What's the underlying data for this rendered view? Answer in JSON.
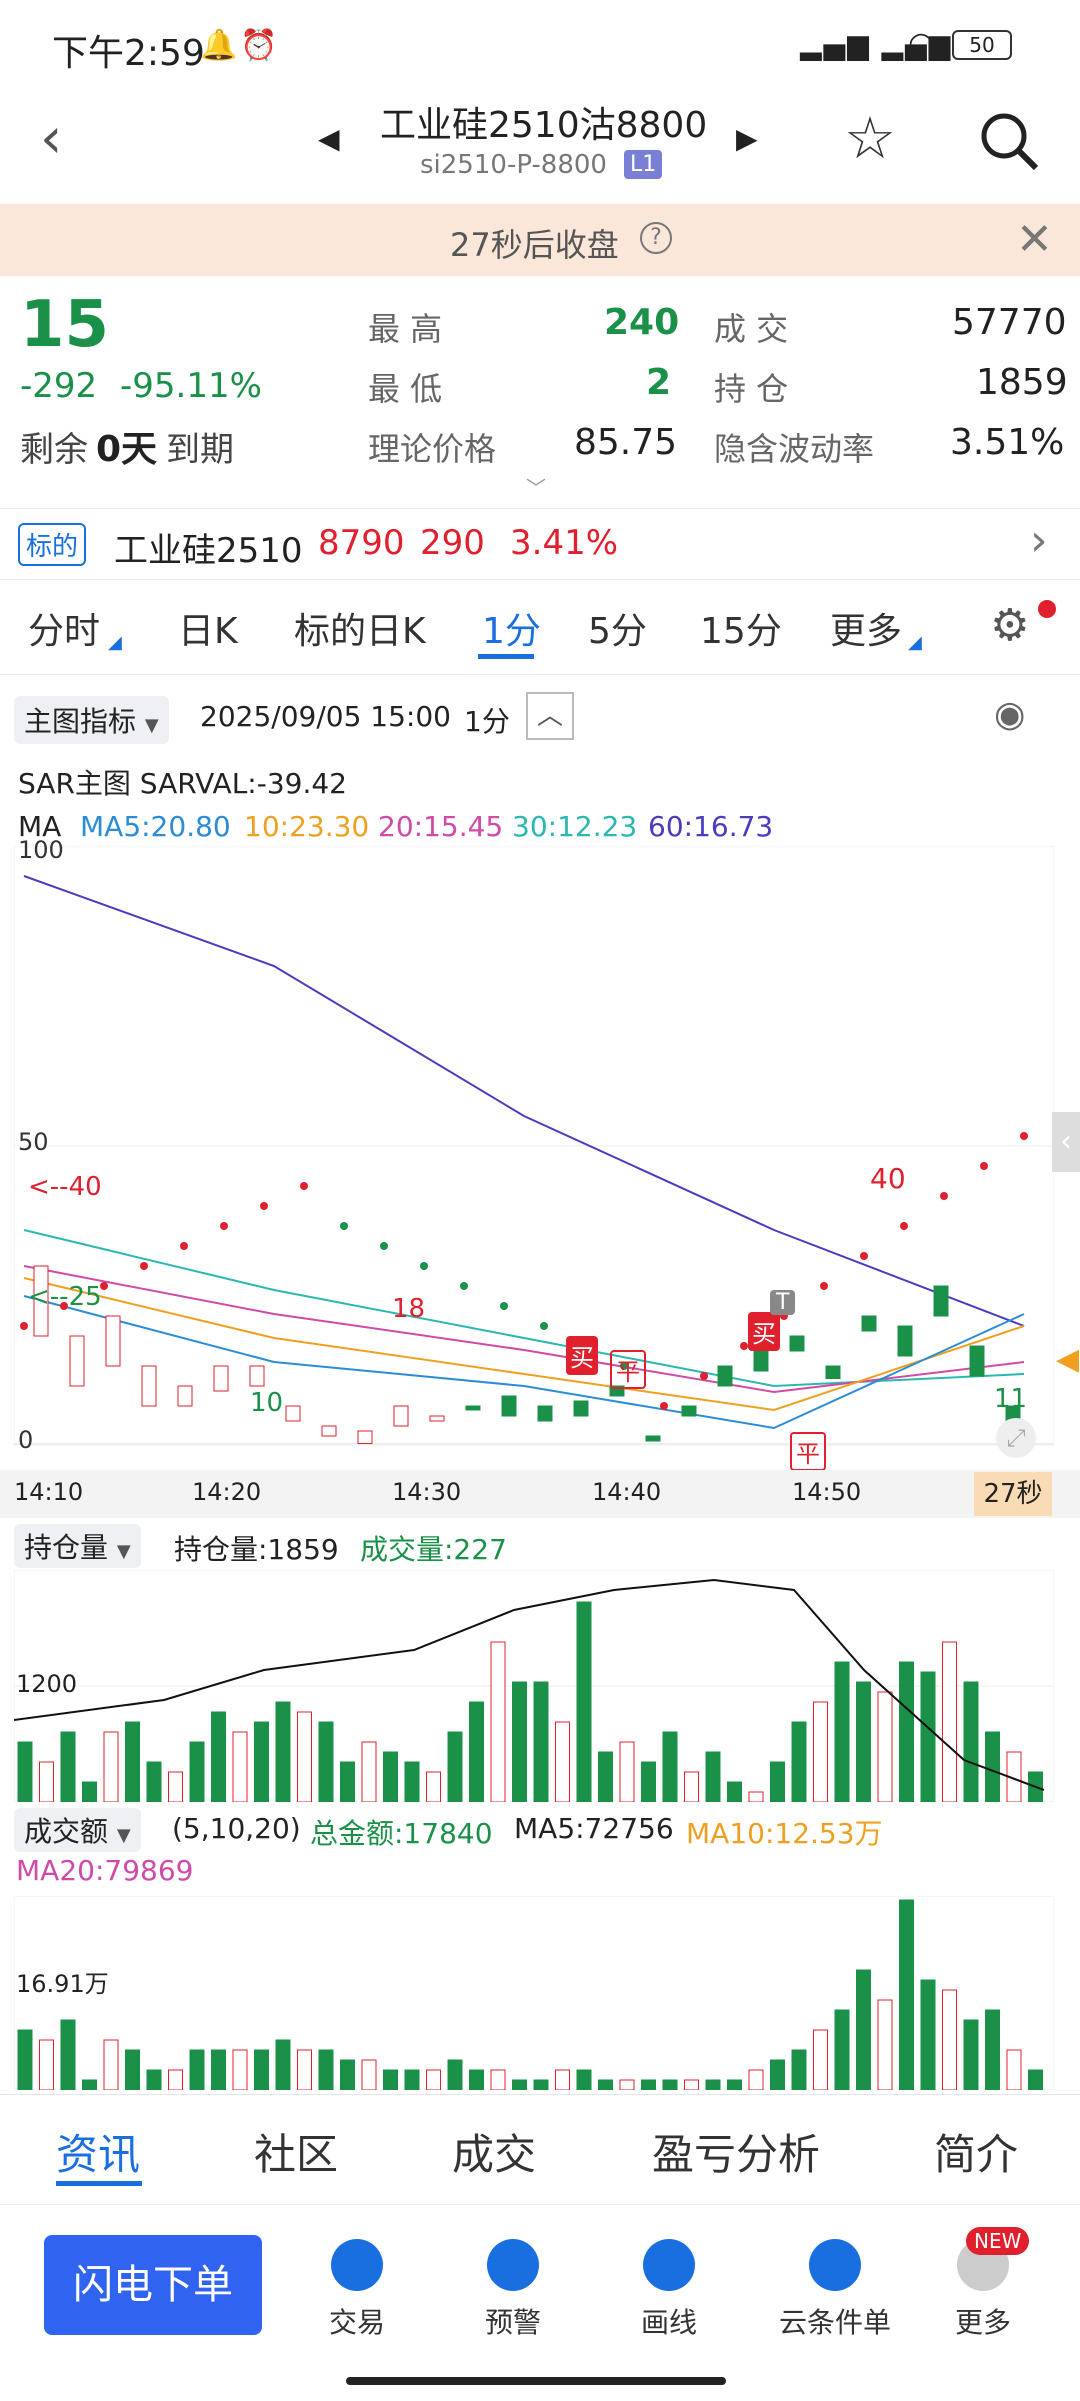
{
  "status_bar": {
    "time": "下午2:59",
    "battery": "50"
  },
  "header": {
    "title": "工业硅2510沽8800",
    "code": "si2510-P-8800",
    "level_badge": "L1"
  },
  "notice": {
    "text": "27秒后收盘"
  },
  "quote": {
    "price": "15",
    "change": "-292",
    "change_pct": "-95.11%",
    "remaining_label": "剩余",
    "remaining_value": "0天",
    "expire_label": "到期",
    "high_label": "最 高",
    "high": "240",
    "low_label": "最 低",
    "low": "2",
    "theo_label": "理论价格",
    "theo": "85.75",
    "volume_label": "成 交",
    "volume": "57770",
    "oi_label": "持 仓",
    "oi": "1859",
    "iv_label": "隐含波动率",
    "iv": "3.51%"
  },
  "underlying": {
    "tag": "标的",
    "name": "工业硅2510",
    "price": "8790",
    "change": "290",
    "change_pct": "3.41%"
  },
  "tabs": [
    {
      "label": "分时"
    },
    {
      "label": "日K"
    },
    {
      "label": "标的日K"
    },
    {
      "label": "1分"
    },
    {
      "label": "5分"
    },
    {
      "label": "15分"
    },
    {
      "label": "更多"
    }
  ],
  "chart_toolbar": {
    "indicator": "主图指标",
    "datetime": "2025/09/05 15:00",
    "period": "1分"
  },
  "main_chart": {
    "sar_label": "SAR主图 SARVAL:-39.42",
    "ma_label": "MA",
    "ma5": "MA5:20.80",
    "ma10": "10:23.30",
    "ma20": "20:15.45",
    "ma30": "30:12.23",
    "ma60": "60:16.73",
    "y_top": "100",
    "y_mid": "50",
    "y_bottom": "0",
    "label_40_left": "40",
    "label_25_left": "25",
    "label_18": "18",
    "label_10": "10",
    "label_40_high": "40",
    "label_11": "11",
    "buy1": "买",
    "close1": "平",
    "buy2": "买",
    "close2": "平",
    "t_tag": "T",
    "x_labels": [
      "14:10",
      "14:20",
      "14:30",
      "14:40",
      "14:50"
    ],
    "countdown": "27秒"
  },
  "oi_chart": {
    "select": "持仓量",
    "oi_text": "持仓量:1859",
    "vol_text": "成交量:227",
    "y_label": "1200"
  },
  "amount_chart": {
    "select": "成交额",
    "params": "(5,10,20)",
    "total": "总金额:17840",
    "ma5": "MA5:72756",
    "ma10": "MA10:12.53万",
    "ma20": "MA20:79869",
    "y_label": "16.91万"
  },
  "bottom_tabs": [
    {
      "label": "资讯"
    },
    {
      "label": "社区"
    },
    {
      "label": "成交"
    },
    {
      "label": "盈亏分析"
    },
    {
      "label": "简介"
    }
  ],
  "toolbar": {
    "quick_order": "闪电下单",
    "items": [
      {
        "label": "交易"
      },
      {
        "label": "预警"
      },
      {
        "label": "画线"
      },
      {
        "label": "云条件单"
      },
      {
        "label": "更多"
      }
    ],
    "new_badge": "NEW"
  },
  "colors": {
    "accent": "#1a6fe0",
    "up": "#e0202c",
    "down": "#1a9048",
    "ma5": "#2b8cd8",
    "ma10": "#f0a020",
    "ma20": "#d04aa8",
    "ma30": "#2bb8b0",
    "ma60": "#4a3cc0"
  },
  "chart_data": [
    {
      "type": "line",
      "title": "",
      "x": [
        "14:10",
        "14:20",
        "14:30",
        "14:40",
        "14:50"
      ],
      "ylim": [
        0,
        100
      ],
      "series": [
        {
          "name": "MA60",
          "values": [
            95,
            80,
            55,
            36,
            20
          ]
        },
        {
          "name": "MA30",
          "values": [
            36,
            26,
            18,
            10,
            12
          ]
        },
        {
          "name": "MA20",
          "values": [
            30,
            22,
            16,
            9,
            14
          ]
        },
        {
          "name": "MA10",
          "values": [
            28,
            18,
            12,
            6,
            20
          ]
        },
        {
          "name": "MA5",
          "values": [
            25,
            14,
            10,
            3,
            22
          ]
        }
      ]
    }
  ]
}
